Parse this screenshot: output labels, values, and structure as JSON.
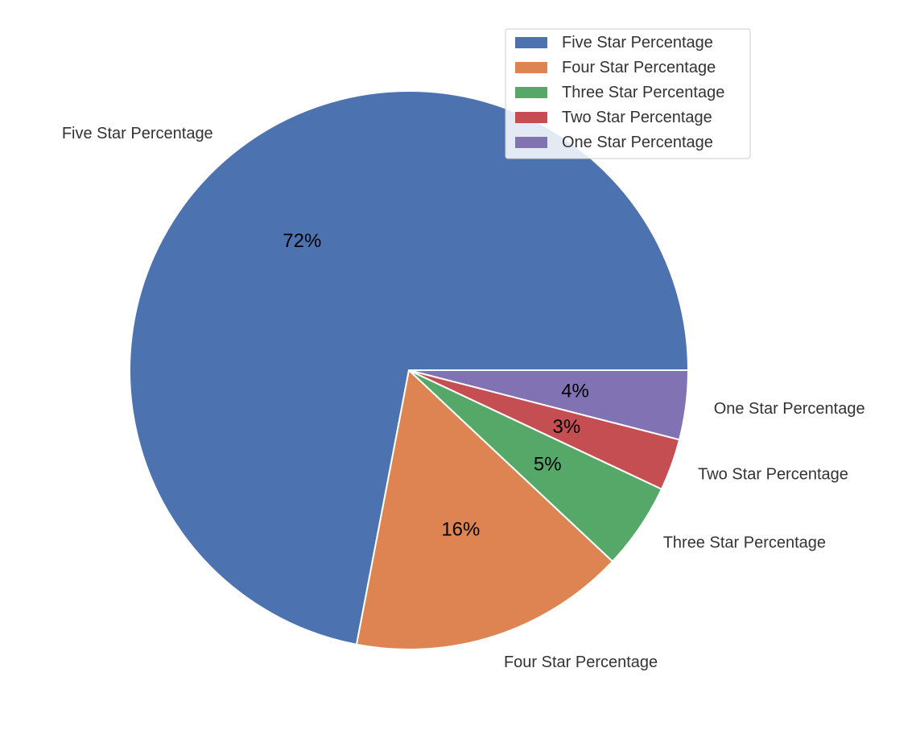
{
  "chart_data": {
    "type": "pie",
    "categories": [
      "Five Star Percentage",
      "Four Star Percentage",
      "Three Star Percentage",
      "Two Star Percentage",
      "One Star Percentage"
    ],
    "values": [
      72,
      16,
      5,
      3,
      4
    ],
    "value_labels": [
      "72%",
      "16%",
      "5%",
      "3%",
      "4%"
    ],
    "colors": [
      "#4c72b0",
      "#dd8452",
      "#55a868",
      "#c44e52",
      "#8172b3"
    ],
    "start_angle_deg": 0,
    "direction": "counterclockwise",
    "legend": {
      "position": "top-right",
      "entries": [
        "Five Star Percentage",
        "Four Star Percentage",
        "Three Star Percentage",
        "Two Star Percentage",
        "One Star Percentage"
      ]
    },
    "title": "",
    "xlabel": "",
    "ylabel": ""
  }
}
